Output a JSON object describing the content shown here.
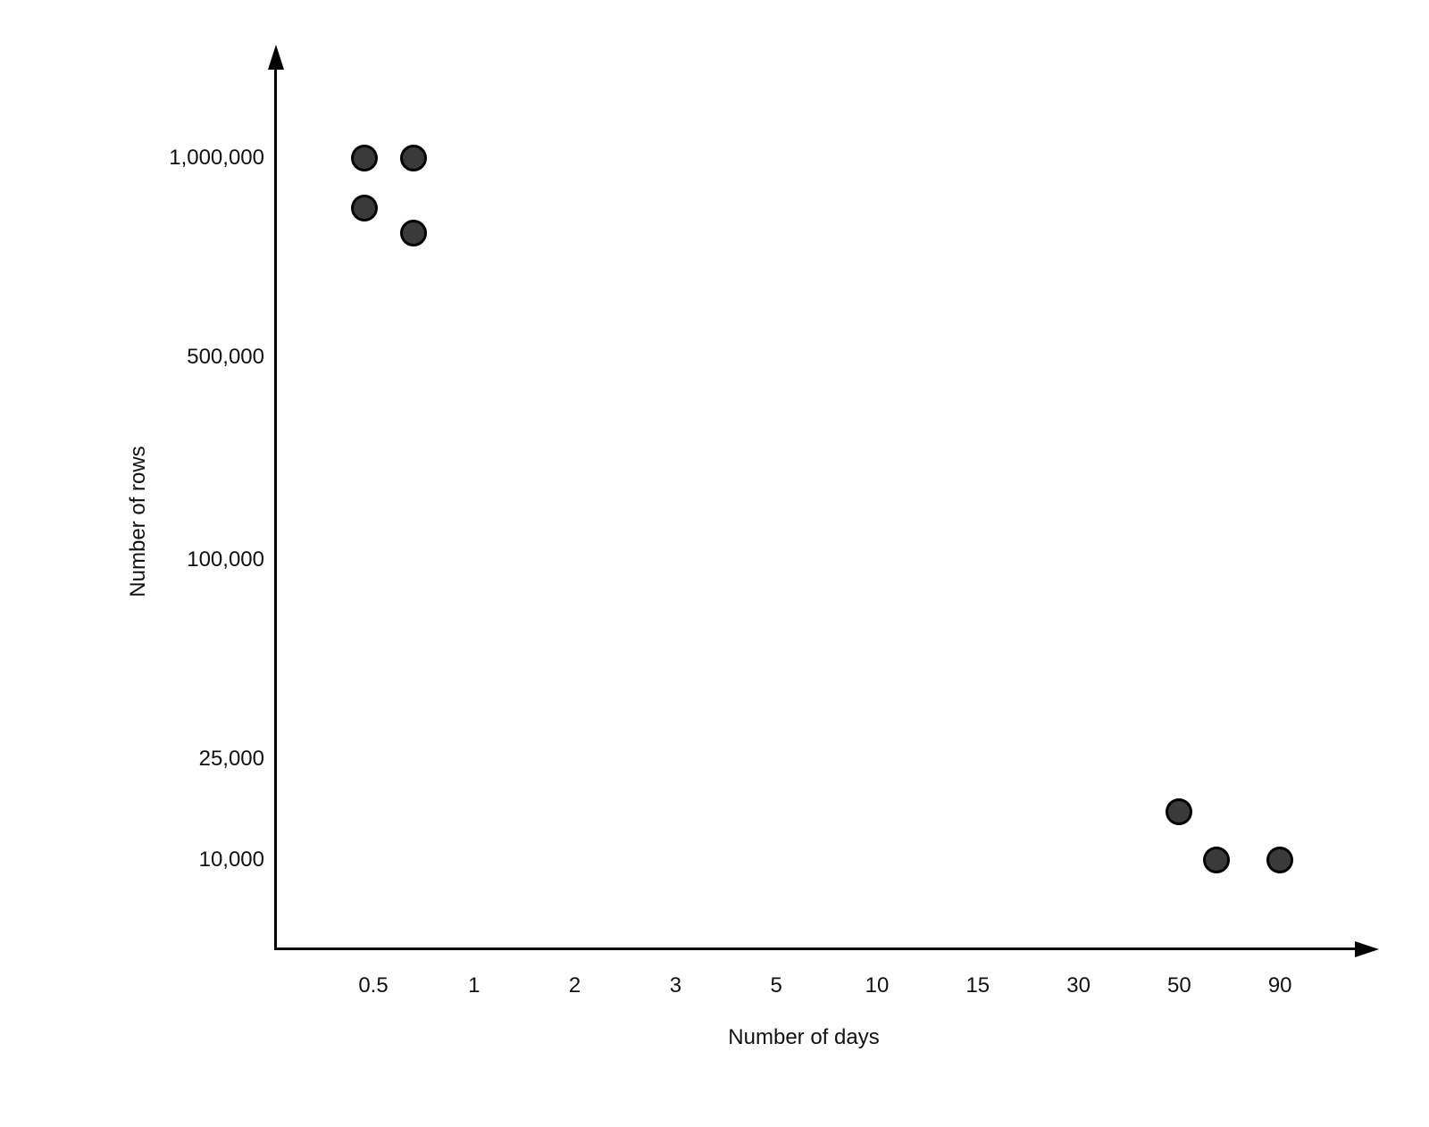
{
  "chart_data": {
    "type": "scatter",
    "title": "",
    "xlabel": "Number of days",
    "ylabel": "Number of rows",
    "x_ticks": [
      {
        "label": "0.5",
        "value": 0.5
      },
      {
        "label": "1",
        "value": 1
      },
      {
        "label": "2",
        "value": 2
      },
      {
        "label": "3",
        "value": 3
      },
      {
        "label": "5",
        "value": 5
      },
      {
        "label": "10",
        "value": 10
      },
      {
        "label": "15",
        "value": 15
      },
      {
        "label": "30",
        "value": 30
      },
      {
        "label": "50",
        "value": 50
      },
      {
        "label": "90",
        "value": 90
      }
    ],
    "y_ticks": [
      {
        "label": "1,000,000",
        "value": 1000000
      },
      {
        "label": "500,000",
        "value": 500000
      },
      {
        "label": "100,000",
        "value": 100000
      },
      {
        "label": "25,000",
        "value": 25000
      },
      {
        "label": "10,000",
        "value": 10000
      }
    ],
    "points": [
      {
        "days": 0.47,
        "rows": 1000000
      },
      {
        "days": 0.66,
        "rows": 1000000
      },
      {
        "days": 0.47,
        "rows": 840000
      },
      {
        "days": 0.66,
        "rows": 770000
      },
      {
        "days": 50,
        "rows": 15500
      },
      {
        "days": 62,
        "rows": 10000
      },
      {
        "days": 90,
        "rows": 10000
      }
    ],
    "xlim": [
      0.4,
      120
    ],
    "ylim": [
      7000,
      1300000
    ],
    "grid": false,
    "legend": "none",
    "x_scale_note": "log-interpolated between evenly spaced ticks",
    "y_scale_note": "log-interpolated between labeled tick positions"
  },
  "colors": {
    "background": "#ffffff",
    "axis": "#000000",
    "text": "#111111",
    "marker_fill": "#3a3a3a",
    "marker_stroke": "#000000"
  }
}
